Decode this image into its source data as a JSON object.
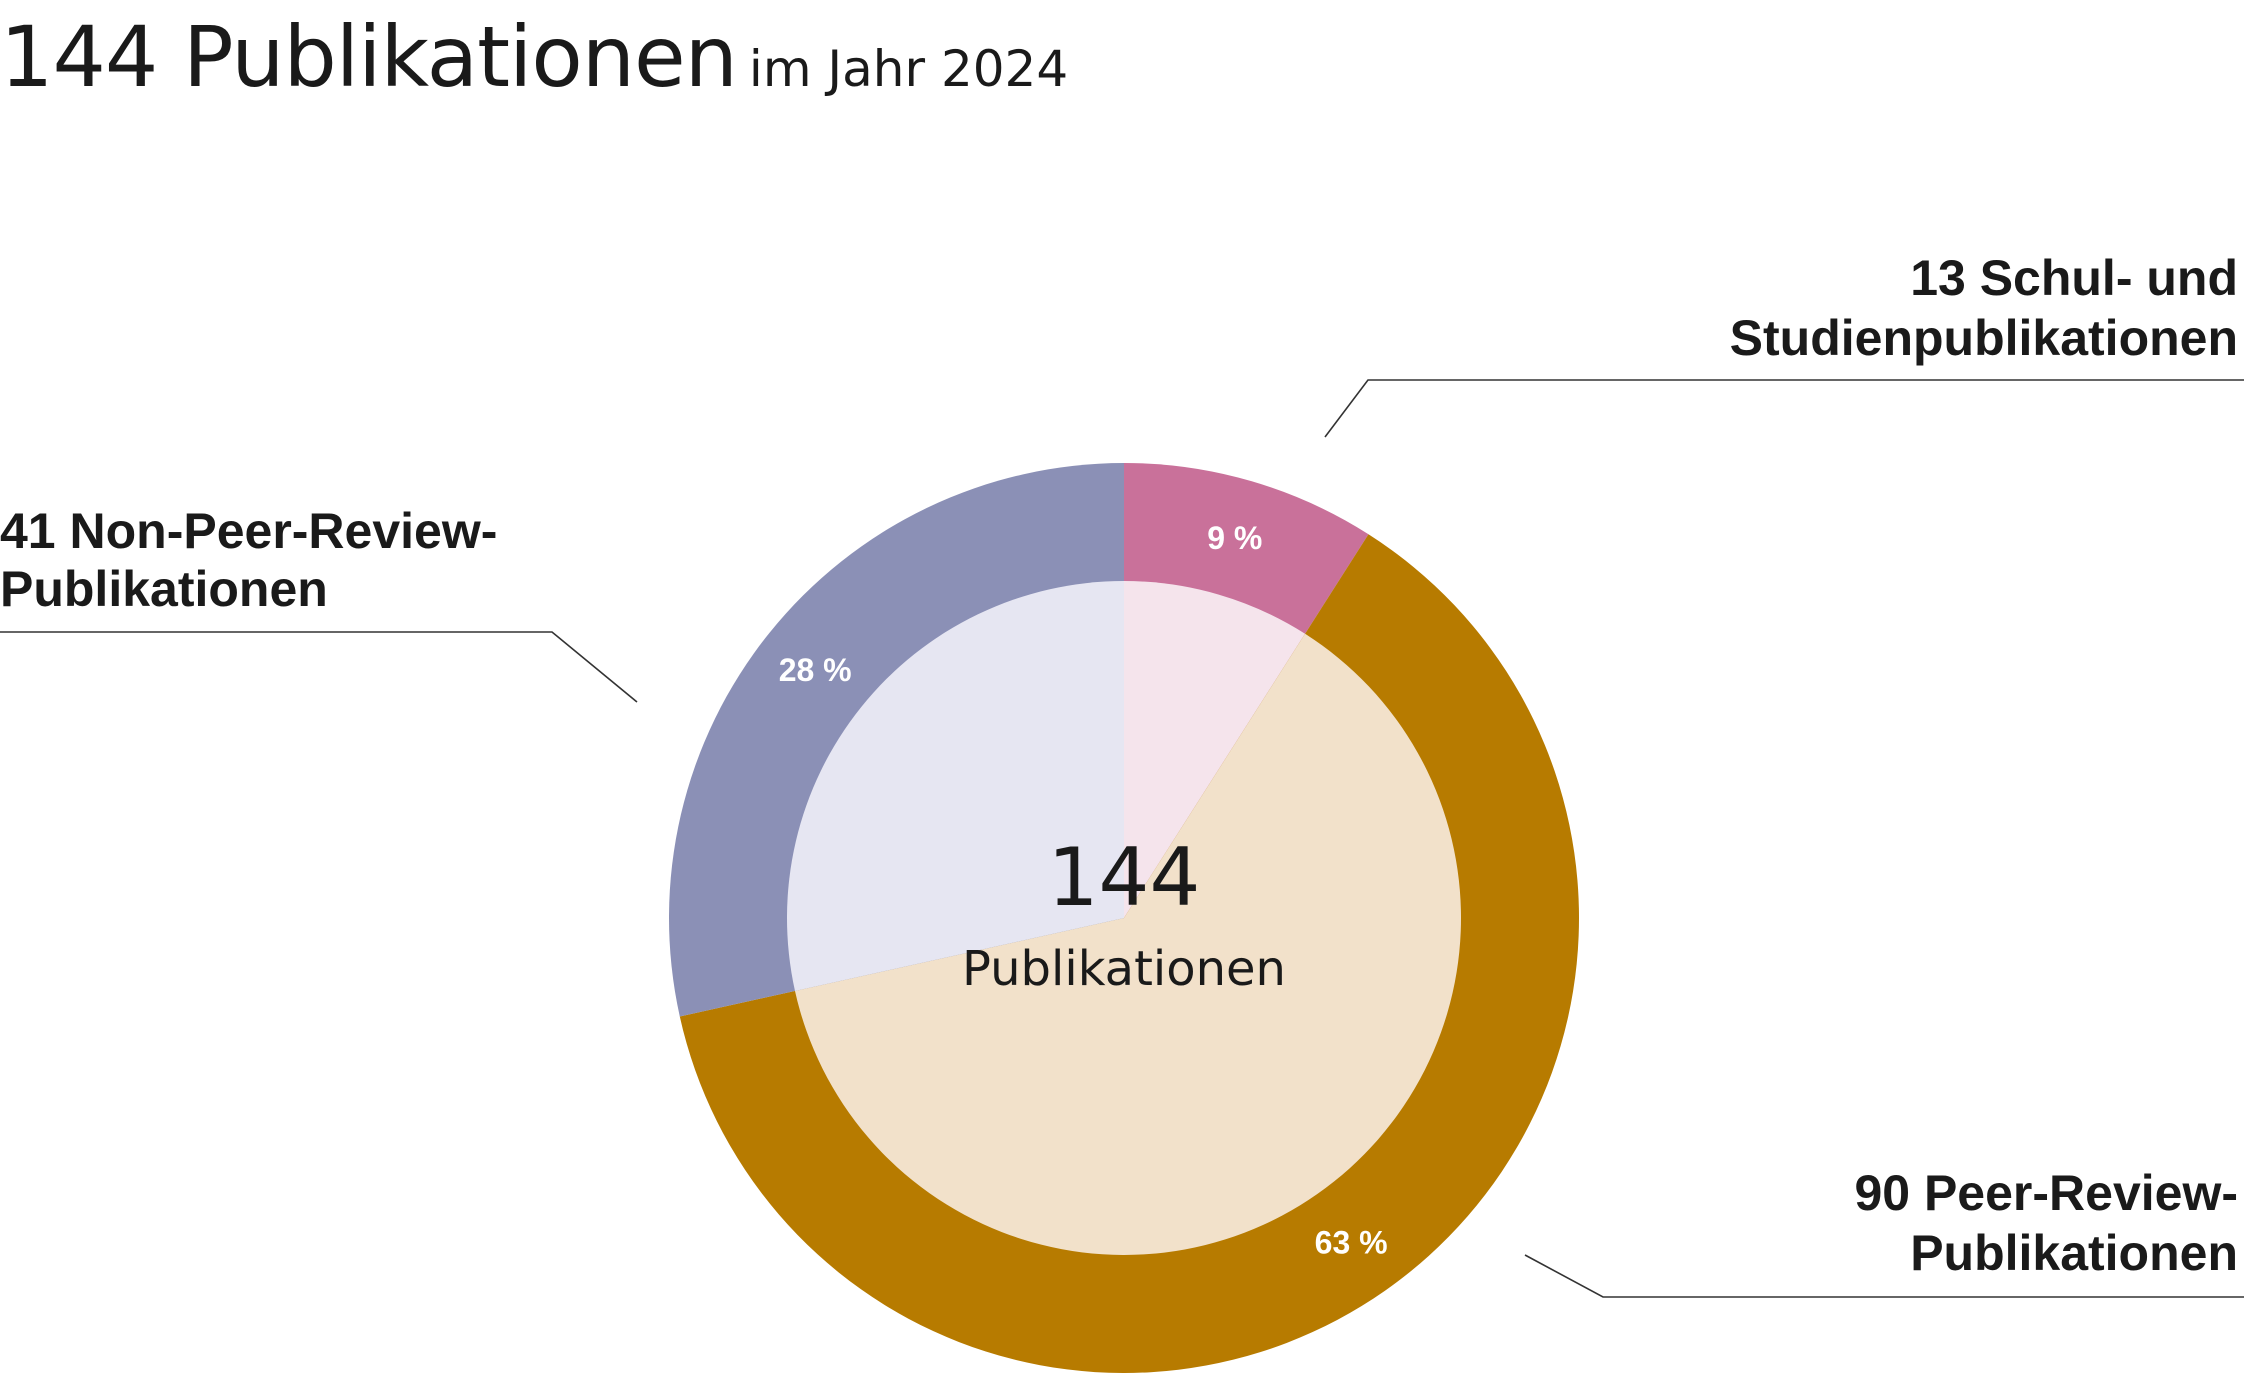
{
  "header": {
    "title": "144 Publikationen",
    "subtitle": "im Jahr 2024"
  },
  "chart_data": {
    "type": "pie",
    "variant": "donut",
    "title": "144 Publikationen",
    "subtitle": "im Jahr 2024",
    "center": {
      "value": "144",
      "label": "Publikationen"
    },
    "total": 144,
    "slices": [
      {
        "label_lines": [
          "13 Schul- und",
          "Studienpublikationen"
        ],
        "count": 13,
        "percent_label": "9 %",
        "outer_color": "#c9719a",
        "inner_color": "#f5e4ec"
      },
      {
        "label_lines": [
          "90 Peer-Review-",
          "Publikationen"
        ],
        "count": 90,
        "percent_label": "63 %",
        "outer_color": "#b77b00",
        "inner_color": "#f2e1ca"
      },
      {
        "label_lines": [
          "41 Non-Peer-Review-",
          "Publikationen"
        ],
        "count": 41,
        "percent_label": "28 %",
        "outer_color": "#8b90b6",
        "inner_color": "#e6e6f2"
      }
    ],
    "start_angle": "12 o'clock",
    "direction": "clockwise",
    "legend": "none"
  }
}
